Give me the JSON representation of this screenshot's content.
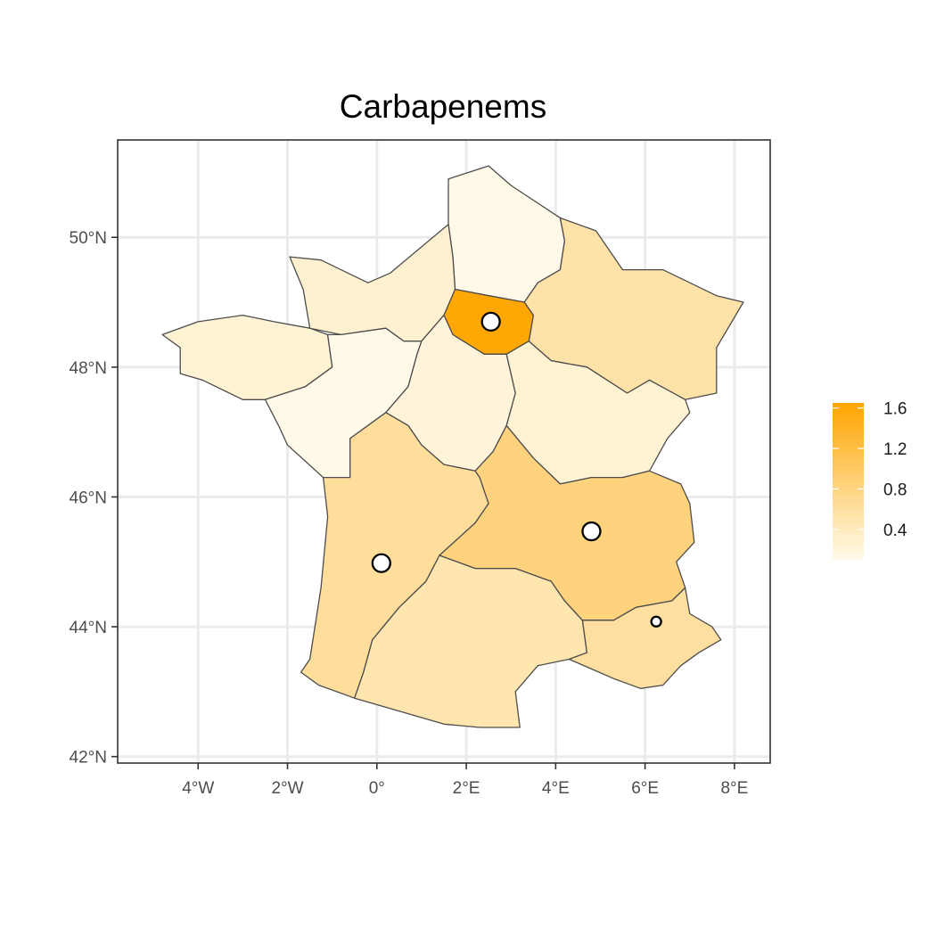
{
  "chart_data": {
    "type": "choropleth",
    "title": "Carbapenems",
    "xlim": [
      -5.8,
      8.8
    ],
    "ylim": [
      41.9,
      51.5
    ],
    "x_ticks": [
      {
        "value": -4,
        "label": "4°W"
      },
      {
        "value": -2,
        "label": "2°W"
      },
      {
        "value": 0,
        "label": "0°"
      },
      {
        "value": 2,
        "label": "2°E"
      },
      {
        "value": 4,
        "label": "4°E"
      },
      {
        "value": 6,
        "label": "6°E"
      },
      {
        "value": 8,
        "label": "8°E"
      }
    ],
    "y_ticks": [
      {
        "value": 42,
        "label": "42°N"
      },
      {
        "value": 44,
        "label": "44°N"
      },
      {
        "value": 46,
        "label": "46°N"
      },
      {
        "value": 48,
        "label": "48°N"
      },
      {
        "value": 50,
        "label": "50°N"
      }
    ],
    "grid": true,
    "color_scale": {
      "low": "#fffbeb",
      "high": "#ffa500",
      "min": 0.1,
      "max": 1.65,
      "breaks": [
        {
          "value": 1.6,
          "label": "1.6"
        },
        {
          "value": 1.2,
          "label": "1.2"
        },
        {
          "value": 0.8,
          "label": "0.8"
        },
        {
          "value": 0.4,
          "label": "0.4"
        }
      ],
      "legend_position": "right"
    },
    "regions": [
      {
        "id": "hauts-de-france",
        "value": 0.12,
        "outline": [
          [
            1.6,
            50.2
          ],
          [
            1.6,
            50.9
          ],
          [
            2.5,
            51.1
          ],
          [
            3.0,
            50.8
          ],
          [
            4.1,
            50.3
          ],
          [
            4.2,
            49.95
          ],
          [
            4.1,
            49.5
          ],
          [
            3.6,
            49.3
          ],
          [
            3.3,
            49.0
          ],
          [
            2.5,
            49.1
          ],
          [
            1.75,
            49.2
          ],
          [
            1.7,
            49.7
          ]
        ]
      },
      {
        "id": "grand-est",
        "value": 0.55,
        "outline": [
          [
            4.1,
            50.3
          ],
          [
            4.9,
            50.1
          ],
          [
            5.5,
            49.5
          ],
          [
            6.4,
            49.5
          ],
          [
            7.6,
            49.1
          ],
          [
            8.2,
            49.0
          ],
          [
            7.6,
            48.3
          ],
          [
            7.6,
            47.6
          ],
          [
            6.9,
            47.5
          ],
          [
            6.1,
            47.8
          ],
          [
            5.6,
            47.6
          ],
          [
            4.7,
            48.0
          ],
          [
            3.9,
            48.1
          ],
          [
            3.4,
            48.4
          ],
          [
            3.5,
            48.8
          ],
          [
            3.3,
            49.0
          ],
          [
            3.6,
            49.3
          ],
          [
            4.1,
            49.5
          ],
          [
            4.2,
            49.95
          ]
        ]
      },
      {
        "id": "ile-de-france",
        "value": 1.62,
        "outline": [
          [
            1.5,
            48.8
          ],
          [
            1.75,
            49.2
          ],
          [
            2.5,
            49.1
          ],
          [
            3.3,
            49.0
          ],
          [
            3.5,
            48.8
          ],
          [
            3.4,
            48.4
          ],
          [
            2.9,
            48.2
          ],
          [
            2.4,
            48.2
          ],
          [
            1.7,
            48.5
          ]
        ]
      },
      {
        "id": "normandie",
        "value": 0.28,
        "outline": [
          [
            -1.95,
            49.7
          ],
          [
            -1.25,
            49.65
          ],
          [
            -0.2,
            49.3
          ],
          [
            0.3,
            49.45
          ],
          [
            1.6,
            50.2
          ],
          [
            1.7,
            49.7
          ],
          [
            1.75,
            49.2
          ],
          [
            1.5,
            48.8
          ],
          [
            1.0,
            48.4
          ],
          [
            0.6,
            48.4
          ],
          [
            0.2,
            48.6
          ],
          [
            -0.8,
            48.5
          ],
          [
            -1.5,
            48.6
          ],
          [
            -1.65,
            49.2
          ]
        ]
      },
      {
        "id": "bretagne",
        "value": 0.25,
        "outline": [
          [
            -1.5,
            48.6
          ],
          [
            -2.3,
            48.7
          ],
          [
            -3.0,
            48.8
          ],
          [
            -4.0,
            48.7
          ],
          [
            -4.8,
            48.5
          ],
          [
            -4.4,
            48.3
          ],
          [
            -4.4,
            47.9
          ],
          [
            -3.9,
            47.8
          ],
          [
            -3.0,
            47.5
          ],
          [
            -2.5,
            47.5
          ],
          [
            -1.6,
            47.7
          ],
          [
            -1.0,
            48.0
          ],
          [
            -1.1,
            48.5
          ]
        ]
      },
      {
        "id": "pays-de-la-loire",
        "value": 0.12,
        "outline": [
          [
            -1.1,
            48.5
          ],
          [
            -1.0,
            48.0
          ],
          [
            -1.6,
            47.7
          ],
          [
            -2.5,
            47.5
          ],
          [
            -2.2,
            47.1
          ],
          [
            -2.0,
            46.8
          ],
          [
            -1.2,
            46.3
          ],
          [
            -0.6,
            46.3
          ],
          [
            -0.6,
            46.9
          ],
          [
            0.2,
            47.3
          ],
          [
            0.7,
            47.7
          ],
          [
            0.9,
            48.2
          ],
          [
            1.0,
            48.4
          ],
          [
            0.6,
            48.4
          ],
          [
            0.2,
            48.6
          ],
          [
            -0.8,
            48.5
          ]
        ]
      },
      {
        "id": "centre-val-de-loire",
        "value": 0.22,
        "outline": [
          [
            1.0,
            48.4
          ],
          [
            1.5,
            48.8
          ],
          [
            1.7,
            48.5
          ],
          [
            2.4,
            48.2
          ],
          [
            2.9,
            48.2
          ],
          [
            3.1,
            47.6
          ],
          [
            2.9,
            47.1
          ],
          [
            2.6,
            46.7
          ],
          [
            2.2,
            46.4
          ],
          [
            1.5,
            46.5
          ],
          [
            1.0,
            46.8
          ],
          [
            0.7,
            47.1
          ],
          [
            0.2,
            47.3
          ],
          [
            0.7,
            47.7
          ],
          [
            0.9,
            48.2
          ]
        ]
      },
      {
        "id": "bourgogne-franche-comte",
        "value": 0.25,
        "outline": [
          [
            2.9,
            48.2
          ],
          [
            3.4,
            48.4
          ],
          [
            3.9,
            48.1
          ],
          [
            4.7,
            48.0
          ],
          [
            5.6,
            47.6
          ],
          [
            6.1,
            47.8
          ],
          [
            6.9,
            47.5
          ],
          [
            7.0,
            47.3
          ],
          [
            6.5,
            46.9
          ],
          [
            6.1,
            46.4
          ],
          [
            5.5,
            46.3
          ],
          [
            4.8,
            46.3
          ],
          [
            4.1,
            46.2
          ],
          [
            3.5,
            46.6
          ],
          [
            2.9,
            47.1
          ],
          [
            3.1,
            47.6
          ]
        ]
      },
      {
        "id": "nouvelle-aquitaine",
        "value": 0.62,
        "outline": [
          [
            -1.2,
            46.3
          ],
          [
            -1.1,
            45.7
          ],
          [
            -1.25,
            44.6
          ],
          [
            -1.5,
            43.5
          ],
          [
            -1.7,
            43.3
          ],
          [
            -1.3,
            43.1
          ],
          [
            -0.5,
            42.9
          ],
          [
            -0.3,
            43.3
          ],
          [
            -0.1,
            43.8
          ],
          [
            0.5,
            44.3
          ],
          [
            1.1,
            44.7
          ],
          [
            1.4,
            45.1
          ],
          [
            2.2,
            45.6
          ],
          [
            2.5,
            45.9
          ],
          [
            2.3,
            46.3
          ],
          [
            2.2,
            46.4
          ],
          [
            1.5,
            46.5
          ],
          [
            1.0,
            46.8
          ],
          [
            0.7,
            47.1
          ],
          [
            0.2,
            47.3
          ],
          [
            -0.6,
            46.9
          ],
          [
            -0.6,
            46.3
          ]
        ]
      },
      {
        "id": "occitanie",
        "value": 0.5,
        "outline": [
          [
            -0.5,
            42.9
          ],
          [
            0.5,
            42.7
          ],
          [
            1.5,
            42.5
          ],
          [
            2.3,
            42.45
          ],
          [
            3.2,
            42.45
          ],
          [
            3.1,
            43.0
          ],
          [
            3.6,
            43.4
          ],
          [
            4.3,
            43.5
          ],
          [
            4.7,
            43.6
          ],
          [
            4.6,
            44.1
          ],
          [
            4.2,
            44.4
          ],
          [
            3.9,
            44.7
          ],
          [
            3.1,
            44.9
          ],
          [
            2.2,
            44.9
          ],
          [
            1.4,
            45.1
          ],
          [
            1.1,
            44.7
          ],
          [
            0.5,
            44.3
          ],
          [
            -0.1,
            43.8
          ],
          [
            -0.3,
            43.3
          ]
        ]
      },
      {
        "id": "auvergne-rhone-alpes",
        "value": 0.82,
        "outline": [
          [
            2.2,
            45.6
          ],
          [
            2.5,
            45.9
          ],
          [
            2.3,
            46.3
          ],
          [
            2.2,
            46.4
          ],
          [
            2.6,
            46.7
          ],
          [
            2.9,
            47.1
          ],
          [
            3.5,
            46.6
          ],
          [
            4.1,
            46.2
          ],
          [
            4.8,
            46.3
          ],
          [
            5.5,
            46.3
          ],
          [
            6.1,
            46.4
          ],
          [
            6.8,
            46.2
          ],
          [
            7.0,
            45.9
          ],
          [
            7.1,
            45.3
          ],
          [
            6.7,
            45.0
          ],
          [
            6.9,
            44.6
          ],
          [
            6.6,
            44.4
          ],
          [
            5.8,
            44.3
          ],
          [
            5.3,
            44.1
          ],
          [
            4.6,
            44.1
          ],
          [
            4.2,
            44.4
          ],
          [
            3.9,
            44.7
          ],
          [
            3.1,
            44.9
          ],
          [
            2.2,
            44.9
          ],
          [
            1.4,
            45.1
          ]
        ]
      },
      {
        "id": "provence-alpes-cote-dazur",
        "value": 0.6,
        "outline": [
          [
            4.6,
            44.1
          ],
          [
            5.3,
            44.1
          ],
          [
            5.8,
            44.3
          ],
          [
            6.6,
            44.4
          ],
          [
            6.9,
            44.6
          ],
          [
            7.0,
            44.2
          ],
          [
            7.5,
            44.0
          ],
          [
            7.7,
            43.8
          ],
          [
            7.2,
            43.6
          ],
          [
            6.8,
            43.4
          ],
          [
            6.4,
            43.1
          ],
          [
            5.9,
            43.05
          ],
          [
            5.3,
            43.2
          ],
          [
            4.8,
            43.35
          ],
          [
            4.3,
            43.5
          ],
          [
            4.7,
            43.6
          ]
        ]
      }
    ],
    "points": [
      {
        "id": "paris",
        "lon": 2.55,
        "lat": 48.7,
        "size": "large"
      },
      {
        "id": "bordeaux",
        "lon": 0.1,
        "lat": 44.98,
        "size": "large"
      },
      {
        "id": "lyon",
        "lon": 4.8,
        "lat": 45.47,
        "size": "large"
      },
      {
        "id": "marseille",
        "lon": 6.25,
        "lat": 44.08,
        "size": "small"
      }
    ]
  }
}
